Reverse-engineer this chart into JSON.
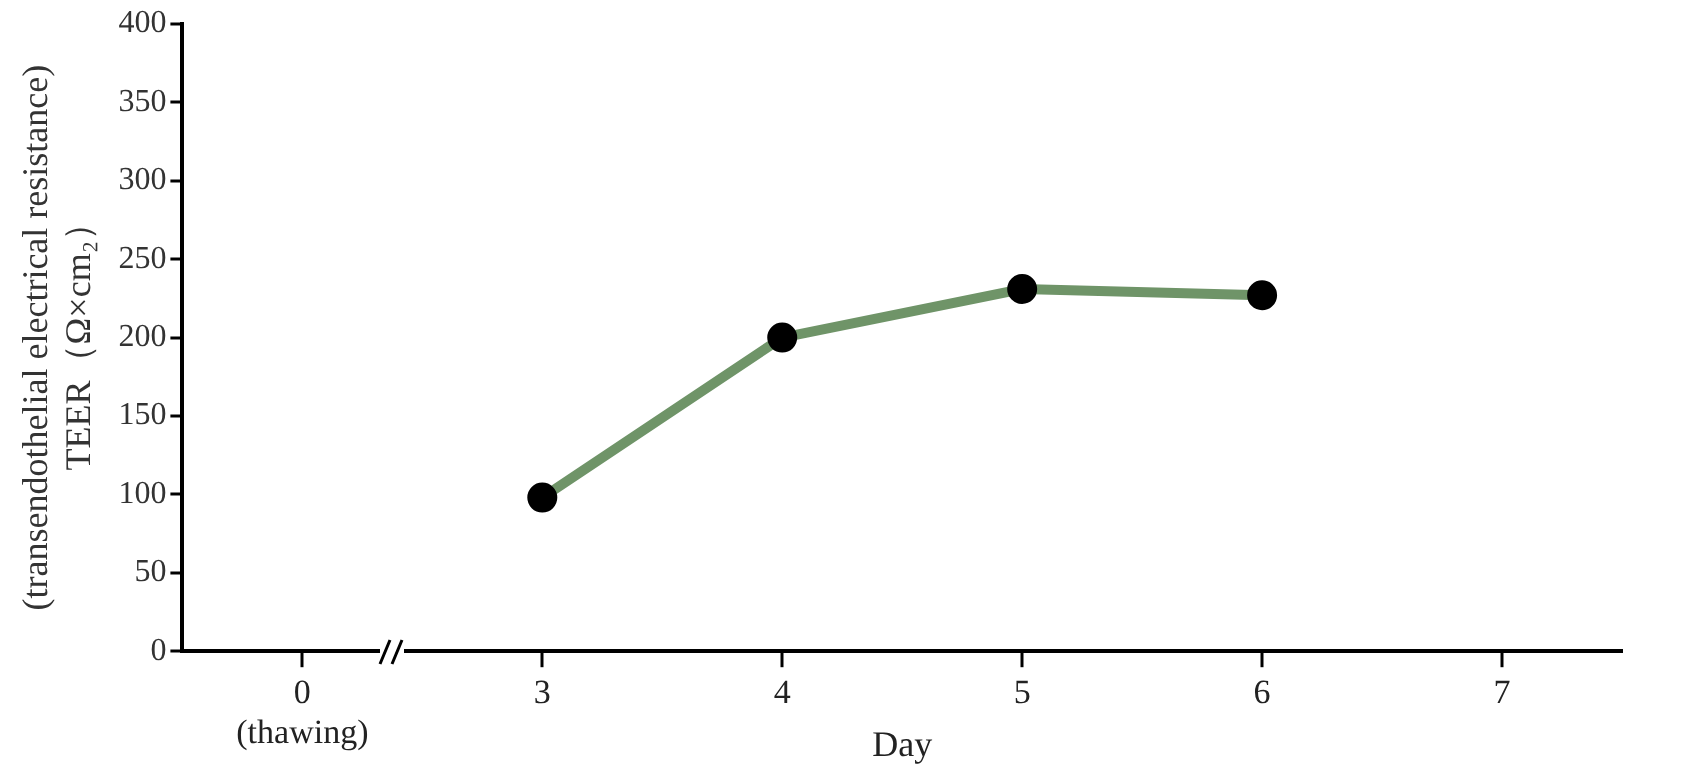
{
  "chart_data": {
    "type": "line",
    "xlabel": "Day",
    "ylabel": "(transendothelial electrical resistance)\nTEER（Ω×cm₂）",
    "categories": [
      "0\n(thawing)",
      "3",
      "4",
      "5",
      "6",
      "7"
    ],
    "series": [
      {
        "color": "#6f9468",
        "values": [
          null,
          98,
          200,
          231,
          227,
          null
        ]
      }
    ],
    "ylim": [
      0,
      400
    ],
    "yticks": [
      0,
      50,
      100,
      150,
      200,
      250,
      300,
      350,
      400
    ],
    "grid": false,
    "legend": false,
    "marker": "circle",
    "line_style": "solid"
  }
}
